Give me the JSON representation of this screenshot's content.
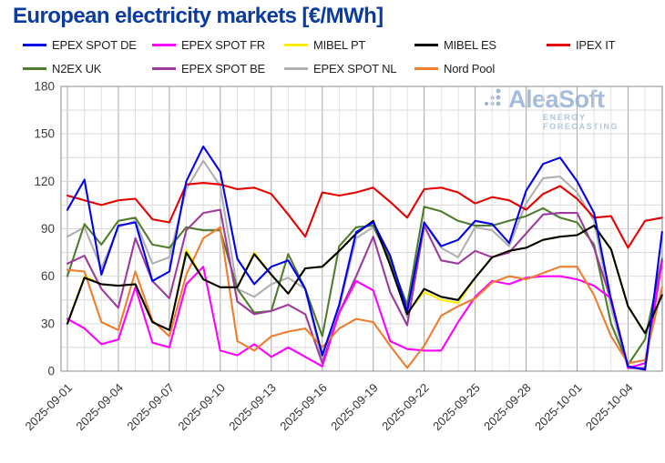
{
  "title": "European electricity markets [€/MWh]",
  "watermark": {
    "brand": "AleaSoft",
    "subtitle": "ENERGY FORECASTING",
    "color": "#a5bcdd"
  },
  "chart_data": {
    "type": "line",
    "title": "European electricity markets [€/MWh]",
    "xlabel": "",
    "ylabel": "",
    "ylim": [
      0,
      180
    ],
    "yticks": [
      0,
      30,
      60,
      90,
      120,
      150,
      180
    ],
    "grid": "on",
    "legend_position": "top",
    "x_tick_labels": [
      "2025-09-01",
      "2025-09-04",
      "2025-09-07",
      "2025-09-10",
      "2025-09-13",
      "2025-09-16",
      "2025-09-19",
      "2025-09-22",
      "2025-09-25",
      "2025-09-28",
      "2025-10-01",
      "2025-10-04"
    ],
    "dates": [
      "2025-09-01",
      "2025-09-02",
      "2025-09-03",
      "2025-09-04",
      "2025-09-05",
      "2025-09-06",
      "2025-09-07",
      "2025-09-08",
      "2025-09-09",
      "2025-09-10",
      "2025-09-11",
      "2025-09-12",
      "2025-09-13",
      "2025-09-14",
      "2025-09-15",
      "2025-09-16",
      "2025-09-17",
      "2025-09-18",
      "2025-09-19",
      "2025-09-20",
      "2025-09-21",
      "2025-09-22",
      "2025-09-23",
      "2025-09-24",
      "2025-09-25",
      "2025-09-26",
      "2025-09-27",
      "2025-09-28",
      "2025-09-29",
      "2025-09-30",
      "2025-10-01",
      "2025-10-02",
      "2025-10-03",
      "2025-10-04",
      "2025-10-05",
      "2025-10-06"
    ],
    "series": [
      {
        "name": "EPEX SPOT DE",
        "color": "#0000ee",
        "values": [
          102,
          121,
          61,
          92,
          94,
          57,
          63,
          120,
          142,
          126,
          71,
          55,
          66,
          70,
          52,
          10,
          42,
          88,
          94,
          73,
          38,
          94,
          79,
          83,
          95,
          93,
          81,
          114,
          131,
          135,
          120,
          100,
          45,
          3,
          1,
          88
        ]
      },
      {
        "name": "EPEX SPOT FR",
        "color": "#ff00ff",
        "values": [
          33,
          27,
          17,
          20,
          53,
          18,
          15,
          55,
          66,
          13,
          10,
          17,
          9,
          15,
          9,
          3,
          37,
          57,
          51,
          19,
          14,
          13,
          13,
          31,
          47,
          57,
          55,
          59,
          60,
          60,
          58,
          54,
          46,
          2,
          5,
          69
        ]
      },
      {
        "name": "MIBEL PT",
        "color": "#ffee00",
        "values": [
          30,
          60,
          55,
          54,
          55,
          31,
          26,
          77,
          58,
          53,
          53,
          75,
          61,
          49,
          65,
          66,
          76,
          87,
          94,
          67,
          37,
          50,
          45,
          43,
          59,
          72,
          76,
          78,
          83,
          85,
          86,
          92,
          77,
          41,
          24,
          48
        ]
      },
      {
        "name": "MIBEL ES",
        "color": "#000000",
        "values": [
          30,
          59,
          55,
          54,
          55,
          31,
          26,
          75,
          58,
          53,
          53,
          74,
          61,
          49,
          65,
          66,
          76,
          87,
          95,
          67,
          36,
          52,
          47,
          45,
          59,
          72,
          76,
          78,
          83,
          85,
          86,
          92,
          77,
          41,
          24,
          48
        ]
      },
      {
        "name": "IPEX IT",
        "color": "#e80000",
        "values": [
          111,
          108,
          105,
          108,
          109,
          96,
          94,
          118,
          119,
          118,
          115,
          116,
          112,
          99,
          85,
          113,
          111,
          113,
          116,
          107,
          97,
          115,
          116,
          113,
          106,
          110,
          108,
          102,
          112,
          117,
          109,
          97,
          98,
          78,
          95,
          97
        ]
      },
      {
        "name": "N2EX UK",
        "color": "#507d2d",
        "values": [
          60,
          93,
          80,
          95,
          97,
          80,
          78,
          91,
          89,
          89,
          52,
          37,
          38,
          74,
          52,
          22,
          79,
          91,
          92,
          70,
          42,
          104,
          101,
          95,
          92,
          92,
          95,
          98,
          103,
          97,
          94,
          80,
          30,
          4,
          20,
          71
        ]
      },
      {
        "name": "EPEX SPOT BE",
        "color": "#9e3a9e",
        "values": [
          68,
          73,
          52,
          40,
          84,
          57,
          46,
          89,
          100,
          102,
          44,
          36,
          38,
          42,
          36,
          5,
          37,
          60,
          85,
          50,
          29,
          92,
          70,
          68,
          76,
          72,
          75,
          87,
          99,
          100,
          100,
          78,
          45,
          2,
          2,
          70
        ]
      },
      {
        "name": "EPEX SPOT NL",
        "color": "#b0b0b0",
        "values": [
          85,
          91,
          65,
          91,
          95,
          68,
          72,
          115,
          133,
          117,
          52,
          47,
          55,
          59,
          52,
          6,
          40,
          84,
          91,
          71,
          34,
          94,
          78,
          72,
          91,
          89,
          79,
          106,
          122,
          123,
          113,
          95,
          40,
          2,
          1,
          70
        ]
      },
      {
        "name": "Nord Pool",
        "color": "#ee7d2e",
        "values": [
          64,
          63,
          31,
          26,
          63,
          32,
          22,
          61,
          84,
          91,
          19,
          13,
          22,
          25,
          27,
          15,
          27,
          33,
          31,
          16,
          2,
          16,
          35,
          41,
          46,
          56,
          60,
          58,
          62,
          66,
          66,
          48,
          22,
          5,
          7,
          53
        ]
      }
    ]
  }
}
